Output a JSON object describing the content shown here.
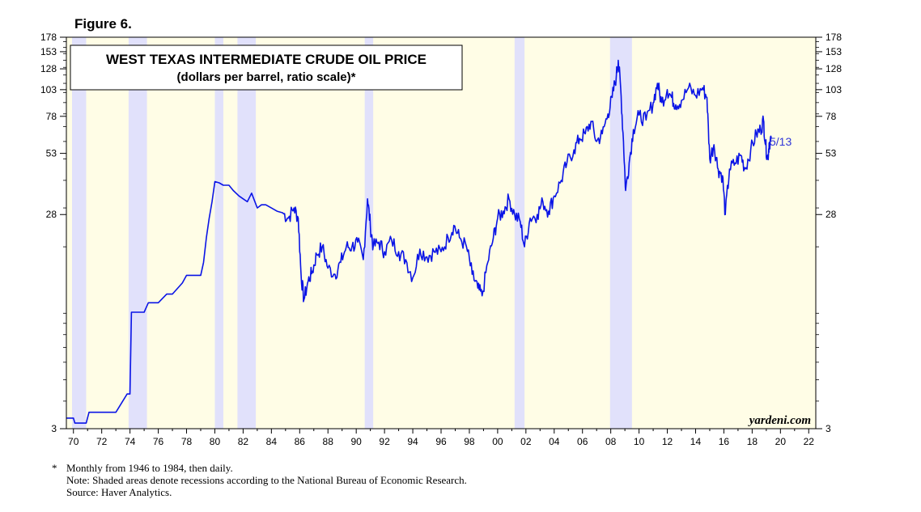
{
  "figure_label": "Figure 6.",
  "notes": {
    "asterisk": "*",
    "line1": "Monthly from 1946 to 1984, then daily.",
    "line2": "Note: Shaded areas denote recessions according to the National Bureau of Economic Research.",
    "line3": "Source: Haver Analytics."
  },
  "colors": {
    "background": "#fffde6",
    "recession": "#e1e1fb",
    "line": "#0a14e6",
    "label": "#2f35d8"
  },
  "chart_data": {
    "type": "line",
    "title": "WEST TEXAS INTERMEDIATE CRUDE OIL PRICE",
    "subtitle": "(dollars per barrel, ratio scale)*",
    "xlabel": "",
    "ylabel": "",
    "scale": "log",
    "xlim": [
      1969.5,
      2022.5
    ],
    "ylim": [
      3,
      178
    ],
    "yticks": [
      3,
      28,
      53,
      78,
      103,
      128,
      153,
      178
    ],
    "xticks": [
      1970,
      1972,
      1974,
      1976,
      1978,
      1980,
      1982,
      1984,
      1986,
      1988,
      1990,
      1992,
      1994,
      1996,
      1998,
      2000,
      2002,
      2004,
      2006,
      2008,
      2010,
      2012,
      2014,
      2016,
      2018,
      2020,
      2022
    ],
    "xtick_labels": [
      "70",
      "72",
      "74",
      "76",
      "78",
      "80",
      "82",
      "84",
      "86",
      "88",
      "90",
      "92",
      "94",
      "96",
      "98",
      "00",
      "02",
      "04",
      "06",
      "08",
      "10",
      "12",
      "14",
      "16",
      "18",
      "20",
      "22"
    ],
    "watermark": "yardeni.com",
    "end_label": "5/13",
    "recessions": [
      [
        1969.9,
        1970.9
      ],
      [
        1973.9,
        1975.2
      ],
      [
        1980.0,
        1980.6
      ],
      [
        1981.6,
        1982.9
      ],
      [
        1990.6,
        1991.2
      ],
      [
        2001.2,
        2001.9
      ],
      [
        2007.95,
        2009.5
      ]
    ],
    "series": [
      {
        "name": "WTI crude oil price",
        "x": [
          1969.5,
          1970.0,
          1970.1,
          1970.9,
          1971.1,
          1973.0,
          1973.8,
          1974.0,
          1974.1,
          1975.0,
          1975.3,
          1976.0,
          1976.6,
          1977.0,
          1977.7,
          1978.0,
          1978.8,
          1979.0,
          1979.2,
          1979.4,
          1979.6,
          1979.8,
          1980.0,
          1980.3,
          1980.6,
          1981.0,
          1981.3,
          1981.7,
          1982.0,
          1982.3,
          1982.6,
          1983.0,
          1983.3,
          1983.6,
          1984.0,
          1984.4,
          1984.8,
          1985.2,
          1985.6,
          1985.9,
          1986.1,
          1986.3,
          1986.6,
          1986.9,
          1987.2,
          1987.6,
          1988.0,
          1988.5,
          1988.9,
          1989.3,
          1989.7,
          1990.1,
          1990.5,
          1990.8,
          1991.0,
          1991.2,
          1991.6,
          1992.0,
          1992.5,
          1993.0,
          1993.5,
          1994.0,
          1994.5,
          1995.0,
          1995.5,
          1996.0,
          1996.5,
          1996.9,
          1997.3,
          1997.8,
          1998.2,
          1998.6,
          1998.9,
          1999.3,
          1999.7,
          2000.0,
          2000.4,
          2000.8,
          2001.2,
          2001.6,
          2001.9,
          2002.3,
          2002.8,
          2003.2,
          2003.6,
          2004.0,
          2004.5,
          2004.9,
          2005.4,
          2005.8,
          2006.2,
          2006.6,
          2007.0,
          2007.4,
          2007.8,
          2008.1,
          2008.4,
          2008.53,
          2008.7,
          2008.9,
          2009.05,
          2009.3,
          2009.6,
          2010.0,
          2010.5,
          2011.0,
          2011.3,
          2011.6,
          2012.0,
          2012.3,
          2012.6,
          2013.0,
          2013.5,
          2014.0,
          2014.5,
          2014.8,
          2015.0,
          2015.3,
          2015.6,
          2015.9,
          2016.1,
          2016.4,
          2016.8,
          2017.2,
          2017.5,
          2017.9,
          2018.3,
          2018.6,
          2018.8,
          2018.95,
          2019.1,
          2019.2,
          2019.35
        ],
        "y": [
          3.35,
          3.35,
          3.18,
          3.18,
          3.56,
          3.56,
          4.31,
          4.31,
          10.11,
          10.11,
          11.16,
          11.16,
          12.21,
          12.21,
          13.71,
          14.85,
          14.85,
          14.85,
          17.0,
          22.0,
          27.0,
          32.0,
          39.5,
          39.0,
          38.0,
          38.0,
          36.0,
          34.0,
          33.0,
          32.0,
          35.0,
          30.0,
          31.0,
          31.0,
          30.0,
          29.0,
          28.5,
          27.0,
          30.0,
          27.0,
          15.0,
          11.5,
          14.0,
          15.5,
          18.5,
          20.0,
          16.0,
          15.0,
          17.0,
          20.0,
          20.0,
          21.0,
          17.5,
          33.0,
          25.0,
          20.0,
          21.0,
          19.0,
          21.5,
          19.0,
          17.5,
          14.5,
          19.5,
          18.0,
          19.0,
          19.0,
          22.0,
          25.0,
          22.0,
          20.0,
          15.0,
          13.0,
          12.0,
          17.0,
          22.0,
          27.0,
          29.0,
          33.0,
          28.0,
          26.0,
          20.0,
          27.0,
          28.0,
          32.0,
          29.0,
          34.0,
          40.0,
          48.0,
          55.0,
          62.0,
          65.0,
          74.0,
          60.0,
          65.0,
          80.0,
          95.0,
          120.0,
          140.0,
          105.0,
          60.0,
          36.0,
          48.0,
          68.0,
          79.0,
          75.0,
          90.0,
          110.0,
          90.0,
          103.0,
          95.0,
          88.0,
          92.0,
          105.0,
          97.0,
          105.0,
          95.0,
          50.0,
          58.0,
          45.0,
          42.0,
          28.0,
          45.0,
          48.0,
          52.0,
          45.0,
          55.0,
          65.0,
          68.0,
          75.0,
          58.0,
          50.0,
          59.0,
          62.0
        ]
      }
    ]
  }
}
